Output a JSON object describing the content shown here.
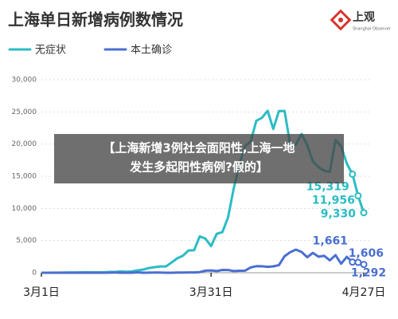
{
  "chart_data": {
    "type": "line",
    "title": "上海单日新增病例数情况",
    "brand": {
      "name": "上观",
      "tagline": "Shanghai Observer"
    },
    "overlay_caption": [
      "【上海新增3例社会面阳性,上海一地",
      "发生多起阳性病例?假的】"
    ],
    "categories": [
      "3月1日",
      null,
      null,
      null,
      null,
      null,
      null,
      null,
      null,
      null,
      null,
      null,
      null,
      null,
      null,
      null,
      null,
      null,
      null,
      null,
      null,
      null,
      null,
      null,
      null,
      null,
      null,
      null,
      null,
      null,
      "3月31日",
      null,
      null,
      null,
      null,
      null,
      null,
      null,
      null,
      null,
      null,
      null,
      null,
      null,
      null,
      null,
      null,
      null,
      null,
      null,
      null,
      null,
      null,
      null,
      null,
      null,
      null,
      "4月27日"
    ],
    "series": [
      {
        "name": "无症状",
        "color": "#2bbcc4",
        "values": [
          1,
          3,
          14,
          16,
          28,
          45,
          51,
          62,
          76,
          64,
          78,
          64,
          128,
          130,
          197,
          150,
          203,
          366,
          492,
          734,
          865,
          977,
          979,
          1580,
          2231,
          2631,
          3450,
          3500,
          5656,
          5298,
          4144,
          6051,
          6311,
          8581,
          13086,
          16766,
          19660,
          20398,
          23624,
          24091,
          25173,
          22348,
          25141,
          25146,
          19872,
          19923,
          21582,
          19831,
          17332,
          16407,
          15861,
          15698,
          20634,
          19657,
          16983,
          15319,
          11956,
          9330
        ],
        "value_labels": [
          null,
          null,
          null,
          null,
          null,
          null,
          null,
          null,
          null,
          null,
          null,
          null,
          null,
          null,
          null,
          null,
          null,
          null,
          null,
          null,
          null,
          null,
          null,
          null,
          null,
          null,
          null,
          null,
          null,
          null,
          null,
          null,
          null,
          null,
          null,
          null,
          null,
          null,
          null,
          null,
          null,
          null,
          null,
          null,
          null,
          null,
          null,
          null,
          null,
          null,
          null,
          null,
          null,
          null,
          null,
          "15,319",
          "11,956",
          "9,330"
        ]
      },
      {
        "name": "本土确诊",
        "color": "#4a6fd0",
        "values": [
          1,
          2,
          3,
          2,
          3,
          3,
          5,
          3,
          4,
          3,
          5,
          1,
          11,
          41,
          5,
          8,
          5,
          57,
          8,
          17,
          24,
          24,
          4,
          4,
          29,
          38,
          45,
          50,
          96,
          326,
          358,
          260,
          438,
          425,
          268,
          311,
          322,
          824,
          1015,
          1006,
          914,
          994,
          1189,
          2573,
          3200,
          3590,
          3238,
          2417,
          3084,
          2494,
          2634,
          1931,
          2736,
          1401,
          2472,
          1661,
          1606,
          1292
        ],
        "value_labels": [
          null,
          null,
          null,
          null,
          null,
          null,
          null,
          null,
          null,
          null,
          null,
          null,
          null,
          null,
          null,
          null,
          null,
          null,
          null,
          null,
          null,
          null,
          null,
          null,
          null,
          null,
          null,
          null,
          null,
          null,
          null,
          null,
          null,
          null,
          null,
          null,
          null,
          null,
          null,
          null,
          null,
          null,
          null,
          null,
          null,
          null,
          null,
          null,
          null,
          null,
          null,
          null,
          null,
          null,
          null,
          "1,661",
          "1,606",
          "1,292"
        ]
      }
    ],
    "ylim": [
      0,
      30000
    ],
    "yticks": [
      0,
      {
        "value": 5000,
        "label": "5,000"
      },
      {
        "value": 10000,
        "label": "10,000"
      },
      {
        "value": 15000,
        "label": "15,000"
      },
      {
        "value": 20000,
        "label": "20,000"
      },
      {
        "value": 25000,
        "label": "25,000"
      },
      {
        "value": 30000,
        "label": "30,000"
      }
    ],
    "grid": true
  }
}
